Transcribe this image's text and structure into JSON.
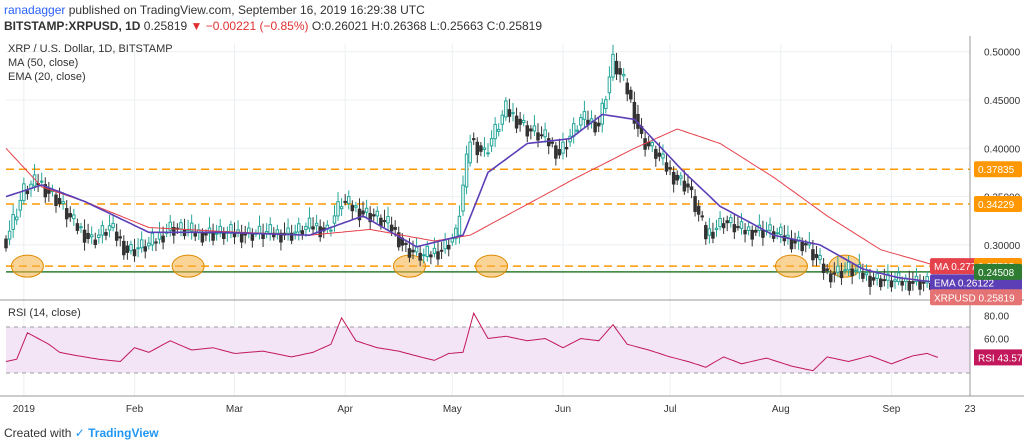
{
  "header": {
    "author": "ranadagger",
    "published_text": "published on TradingView.com, September 16, 2019 16:29:38 UTC",
    "symbol_line": "BITSTAMP:XRPUSD, 1D",
    "last": "0.25819",
    "change": "▼ −0.00221 (−0.85%)",
    "ohlc": "O:0.26021 H:0.26368 L:0.25663 C:0.25819"
  },
  "legend": {
    "title": "XRP / U.S. Dollar, 1D, BITSTAMP",
    "ma": "MA (50, close)",
    "ema": "EMA (20, close)",
    "rsi": "RSI (14, close)"
  },
  "footer": {
    "created_with": "Created with",
    "brand": "TradingView"
  },
  "colors": {
    "up": "#26a69a",
    "down": "#333333",
    "ma": "#e5414a",
    "ema": "#5c3fb6",
    "rsi": "#c2185b",
    "rsi_band": "#f3e5f5",
    "level": "#ff9800",
    "support": "#2e7d32",
    "highlight": "#f5b042",
    "price_tag": "#e57373"
  },
  "chart_data": [
    {
      "type": "candlestick",
      "title": "XRP / U.S. Dollar, 1D, BITSTAMP",
      "ylim": [
        0.245,
        0.508
      ],
      "y_ticks": [
        "0.50000",
        "0.45000",
        "0.40000",
        "0.35000",
        "0.30000"
      ],
      "x_ticks": [
        "2019",
        "Feb",
        "Mar",
        "Apr",
        "May",
        "Jun",
        "Jul",
        "Aug",
        "Sep",
        "23"
      ],
      "x_tick_days": [
        5,
        36,
        64,
        95,
        125,
        156,
        186,
        217,
        248,
        270
      ],
      "days": 270,
      "price_path": [
        [
          0,
          0.306
        ],
        [
          5,
          0.356
        ],
        [
          9,
          0.366
        ],
        [
          14,
          0.348
        ],
        [
          19,
          0.322
        ],
        [
          24,
          0.305
        ],
        [
          29,
          0.318
        ],
        [
          34,
          0.294
        ],
        [
          40,
          0.3
        ],
        [
          46,
          0.318
        ],
        [
          54,
          0.312
        ],
        [
          66,
          0.312
        ],
        [
          80,
          0.312
        ],
        [
          86,
          0.32
        ],
        [
          90,
          0.315
        ],
        [
          94,
          0.345
        ],
        [
          99,
          0.335
        ],
        [
          103,
          0.33
        ],
        [
          108,
          0.318
        ],
        [
          112,
          0.296
        ],
        [
          117,
          0.288
        ],
        [
          122,
          0.296
        ],
        [
          126,
          0.31
        ],
        [
          130,
          0.41
        ],
        [
          134,
          0.395
        ],
        [
          140,
          0.44
        ],
        [
          146,
          0.42
        ],
        [
          151,
          0.41
        ],
        [
          155,
          0.395
        ],
        [
          161,
          0.43
        ],
        [
          166,
          0.425
        ],
        [
          170,
          0.49
        ],
        [
          174,
          0.46
        ],
        [
          178,
          0.41
        ],
        [
          182,
          0.395
        ],
        [
          186,
          0.375
        ],
        [
          191,
          0.36
        ],
        [
          196,
          0.31
        ],
        [
          201,
          0.325
        ],
        [
          206,
          0.315
        ],
        [
          213,
          0.315
        ],
        [
          220,
          0.305
        ],
        [
          224,
          0.3
        ],
        [
          230,
          0.27
        ],
        [
          236,
          0.275
        ],
        [
          242,
          0.266
        ],
        [
          248,
          0.262
        ],
        [
          255,
          0.262
        ],
        [
          261,
          0.258
        ]
      ],
      "ma": [
        [
          0,
          0.4
        ],
        [
          10,
          0.36
        ],
        [
          22,
          0.345
        ],
        [
          40,
          0.318
        ],
        [
          60,
          0.314
        ],
        [
          85,
          0.31
        ],
        [
          102,
          0.316
        ],
        [
          120,
          0.304
        ],
        [
          130,
          0.31
        ],
        [
          145,
          0.34
        ],
        [
          160,
          0.37
        ],
        [
          176,
          0.4
        ],
        [
          188,
          0.42
        ],
        [
          200,
          0.405
        ],
        [
          215,
          0.37
        ],
        [
          230,
          0.33
        ],
        [
          245,
          0.295
        ],
        [
          261,
          0.278
        ]
      ],
      "ema": [
        [
          0,
          0.35
        ],
        [
          10,
          0.362
        ],
        [
          22,
          0.345
        ],
        [
          40,
          0.313
        ],
        [
          60,
          0.313
        ],
        [
          85,
          0.31
        ],
        [
          100,
          0.33
        ],
        [
          115,
          0.298
        ],
        [
          128,
          0.31
        ],
        [
          135,
          0.375
        ],
        [
          146,
          0.405
        ],
        [
          158,
          0.41
        ],
        [
          167,
          0.435
        ],
        [
          176,
          0.43
        ],
        [
          190,
          0.375
        ],
        [
          200,
          0.34
        ],
        [
          215,
          0.31
        ],
        [
          228,
          0.3
        ],
        [
          240,
          0.275
        ],
        [
          250,
          0.266
        ],
        [
          261,
          0.261
        ]
      ],
      "horizontal_levels": [
        {
          "value": 0.37835,
          "label": "0.37835"
        },
        {
          "value": 0.34229,
          "label": "0.34229"
        },
        {
          "value": 0.27795,
          "label": "0.27795"
        }
      ],
      "support_level": {
        "value": 0.24508,
        "label": "0.24508"
      },
      "tags": [
        {
          "label": "MA",
          "value": "0.27797"
        },
        {
          "label": "EMA",
          "value": "0.26122"
        },
        {
          "label": "XRPUSD",
          "value": "0.25819"
        }
      ],
      "highlight_days": [
        6,
        51,
        113,
        136,
        220,
        235
      ]
    },
    {
      "type": "line",
      "title": "RSI (14, close)",
      "ylim": [
        10,
        90
      ],
      "y_ticks": [
        "80.00",
        "60.00"
      ],
      "band": [
        30,
        70
      ],
      "last_label": "RSI",
      "last_value": "43.57",
      "rsi_path": [
        [
          0,
          40
        ],
        [
          3,
          42
        ],
        [
          6,
          65
        ],
        [
          9,
          60
        ],
        [
          12,
          55
        ],
        [
          15,
          48
        ],
        [
          20,
          45
        ],
        [
          26,
          42
        ],
        [
          32,
          40
        ],
        [
          36,
          52
        ],
        [
          40,
          48
        ],
        [
          46,
          58
        ],
        [
          52,
          50
        ],
        [
          58,
          52
        ],
        [
          64,
          47
        ],
        [
          72,
          49
        ],
        [
          80,
          44
        ],
        [
          86,
          48
        ],
        [
          91,
          55
        ],
        [
          94,
          78
        ],
        [
          98,
          58
        ],
        [
          104,
          52
        ],
        [
          110,
          49
        ],
        [
          116,
          44
        ],
        [
          120,
          41
        ],
        [
          124,
          47
        ],
        [
          128,
          48
        ],
        [
          131,
          82
        ],
        [
          135,
          60
        ],
        [
          140,
          62
        ],
        [
          146,
          58
        ],
        [
          151,
          60
        ],
        [
          156,
          52
        ],
        [
          161,
          60
        ],
        [
          166,
          58
        ],
        [
          170,
          72
        ],
        [
          174,
          55
        ],
        [
          180,
          50
        ],
        [
          186,
          44
        ],
        [
          191,
          40
        ],
        [
          196,
          35
        ],
        [
          201,
          44
        ],
        [
          206,
          38
        ],
        [
          213,
          43
        ],
        [
          220,
          36
        ],
        [
          226,
          32
        ],
        [
          230,
          44
        ],
        [
          236,
          40
        ],
        [
          242,
          45
        ],
        [
          248,
          38
        ],
        [
          254,
          45
        ],
        [
          258,
          47
        ],
        [
          261,
          43.57
        ]
      ]
    }
  ]
}
